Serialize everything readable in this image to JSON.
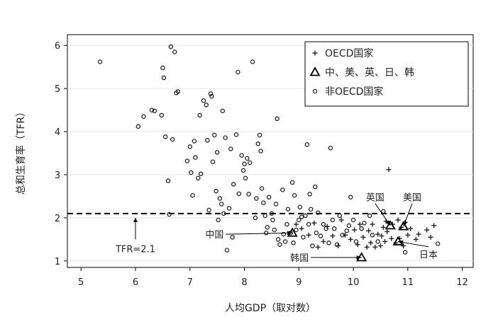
{
  "chart_data": {
    "type": "scatter",
    "xlabel": "人均GDP（取对数）",
    "ylabel": "总和生育率（TFR）",
    "xlim": [
      4.75,
      12.2
    ],
    "ylim": [
      0.85,
      6.25
    ],
    "xticks": [
      "5",
      "6",
      "7",
      "8",
      "9",
      "10",
      "11",
      "12"
    ],
    "yticks": [
      "1",
      "2",
      "3",
      "4",
      "5",
      "6"
    ],
    "grid": "horizontal",
    "legend": {
      "placement": "top-right",
      "entries": [
        {
          "marker": "plus",
          "label": "OECD国家"
        },
        {
          "marker": "triangle",
          "label": "中、美、英、日、韩"
        },
        {
          "marker": "circle",
          "label": "非OECD国家"
        }
      ]
    },
    "reference_line": {
      "y": 2.1,
      "label": "TFR=2.1",
      "style": "dashed"
    },
    "series": [
      {
        "marker": "circle",
        "points": [
          [
            5.35,
            5.62
          ],
          [
            6.05,
            4.12
          ],
          [
            6.15,
            4.35
          ],
          [
            6.3,
            4.5
          ],
          [
            6.35,
            4.48
          ],
          [
            6.48,
            4.38
          ],
          [
            6.5,
            5.48
          ],
          [
            6.52,
            5.25
          ],
          [
            6.55,
            3.88
          ],
          [
            6.6,
            2.86
          ],
          [
            6.62,
            2.08
          ],
          [
            6.65,
            5.97
          ],
          [
            6.68,
            3.82
          ],
          [
            6.72,
            5.85
          ],
          [
            6.75,
            4.9
          ],
          [
            6.78,
            4.93
          ],
          [
            6.95,
            3.32
          ],
          [
            7.0,
            3.65
          ],
          [
            7.02,
            3.05
          ],
          [
            7.05,
            2.52
          ],
          [
            7.08,
            3.78
          ],
          [
            7.1,
            3.4
          ],
          [
            7.15,
            2.92
          ],
          [
            7.18,
            4.38
          ],
          [
            7.2,
            3.02
          ],
          [
            7.25,
            4.72
          ],
          [
            7.3,
            4.62
          ],
          [
            7.32,
            3.8
          ],
          [
            7.35,
            2.18
          ],
          [
            7.38,
            4.88
          ],
          [
            7.4,
            4.82
          ],
          [
            7.42,
            3.3
          ],
          [
            7.45,
            3.92
          ],
          [
            7.48,
            2.62
          ],
          [
            7.5,
            3.52
          ],
          [
            7.52,
            1.95
          ],
          [
            7.55,
            2.45
          ],
          [
            7.58,
            2.32
          ],
          [
            7.6,
            4.48
          ],
          [
            7.62,
            2.1
          ],
          [
            7.65,
            3.86
          ],
          [
            7.68,
            1.25
          ],
          [
            7.72,
            2.22
          ],
          [
            7.75,
            3.6
          ],
          [
            7.78,
            1.55
          ],
          [
            7.8,
            2.78
          ],
          [
            7.85,
            3.93
          ],
          [
            7.88,
            5.38
          ],
          [
            7.9,
            2.56
          ],
          [
            7.95,
            3.45
          ],
          [
            7.98,
            3.1
          ],
          [
            8.0,
            3.25
          ],
          [
            8.02,
            2.92
          ],
          [
            8.05,
            3.38
          ],
          [
            8.08,
            2.55
          ],
          [
            8.1,
            3.28
          ],
          [
            8.15,
            5.62
          ],
          [
            8.2,
            2.0
          ],
          [
            8.22,
            2.45
          ],
          [
            8.25,
            3.72
          ],
          [
            8.28,
            3.92
          ],
          [
            8.3,
            3.55
          ],
          [
            8.32,
            2.68
          ],
          [
            8.35,
            2.35
          ],
          [
            8.38,
            2.05
          ],
          [
            8.4,
            1.65
          ],
          [
            8.42,
            1.78
          ],
          [
            8.45,
            2.48
          ],
          [
            8.5,
            2.1
          ],
          [
            8.52,
            1.95
          ],
          [
            8.55,
            1.72
          ],
          [
            8.58,
            2.32
          ],
          [
            8.6,
            4.3
          ],
          [
            8.62,
            1.5
          ],
          [
            8.65,
            1.38
          ],
          [
            8.7,
            2.65
          ],
          [
            8.72,
            1.62
          ],
          [
            8.75,
            1.45
          ],
          [
            8.78,
            1.85
          ],
          [
            8.8,
            2.2
          ],
          [
            8.85,
            1.65
          ],
          [
            8.88,
            2.82
          ],
          [
            8.9,
            1.42
          ],
          [
            8.92,
            2.52
          ],
          [
            8.95,
            1.72
          ],
          [
            9.0,
            1.95
          ],
          [
            9.02,
            2.25
          ],
          [
            9.05,
            2.02
          ],
          [
            9.08,
            1.55
          ],
          [
            9.12,
            2.05
          ],
          [
            9.15,
            3.7
          ],
          [
            9.18,
            1.85
          ],
          [
            9.2,
            2.55
          ],
          [
            9.22,
            2.2
          ],
          [
            9.25,
            1.35
          ],
          [
            9.3,
            2.72
          ],
          [
            9.32,
            1.65
          ],
          [
            9.35,
            2.12
          ],
          [
            9.4,
            1.58
          ],
          [
            9.45,
            1.85
          ],
          [
            9.5,
            1.75
          ],
          [
            9.55,
            1.42
          ],
          [
            9.58,
            3.62
          ],
          [
            9.62,
            1.95
          ],
          [
            9.65,
            1.75
          ],
          [
            9.7,
            1.38
          ],
          [
            9.75,
            2.05
          ],
          [
            9.8,
            1.6
          ],
          [
            9.88,
            1.7
          ],
          [
            9.92,
            1.82
          ],
          [
            9.95,
            2.48
          ],
          [
            10.0,
            1.95
          ],
          [
            10.05,
            1.45
          ],
          [
            10.15,
            1.75
          ],
          [
            10.2,
            1.88
          ],
          [
            10.3,
            2.05
          ],
          [
            10.35,
            1.6
          ],
          [
            10.45,
            1.45
          ],
          [
            10.55,
            2.15
          ],
          [
            10.95,
            1.2
          ],
          [
            11.55,
            1.4
          ]
        ]
      },
      {
        "marker": "plus",
        "points": [
          [
            8.95,
            1.85
          ],
          [
            9.05,
            1.75
          ],
          [
            9.18,
            1.6
          ],
          [
            9.28,
            1.88
          ],
          [
            9.35,
            1.32
          ],
          [
            9.45,
            1.45
          ],
          [
            9.52,
            1.8
          ],
          [
            9.62,
            1.58
          ],
          [
            9.72,
            1.35
          ],
          [
            9.78,
            1.95
          ],
          [
            9.85,
            1.6
          ],
          [
            9.95,
            1.5
          ],
          [
            10.02,
            1.72
          ],
          [
            10.08,
            1.38
          ],
          [
            10.12,
            1.85
          ],
          [
            10.18,
            1.55
          ],
          [
            10.25,
            1.32
          ],
          [
            10.28,
            1.7
          ],
          [
            10.32,
            1.42
          ],
          [
            10.35,
            1.85
          ],
          [
            10.4,
            1.32
          ],
          [
            10.45,
            1.62
          ],
          [
            10.5,
            1.35
          ],
          [
            10.52,
            1.58
          ],
          [
            10.55,
            1.78
          ],
          [
            10.58,
            1.45
          ],
          [
            10.6,
            1.92
          ],
          [
            10.62,
            1.68
          ],
          [
            10.65,
            3.12
          ],
          [
            10.7,
            1.52
          ],
          [
            10.72,
            1.85
          ],
          [
            10.78,
            1.42
          ],
          [
            10.82,
            1.95
          ],
          [
            10.85,
            1.52
          ],
          [
            10.88,
            1.78
          ],
          [
            10.92,
            1.35
          ],
          [
            10.95,
            1.9
          ],
          [
            11.0,
            1.6
          ],
          [
            11.05,
            1.75
          ],
          [
            11.15,
            1.5
          ],
          [
            11.2,
            1.62
          ],
          [
            11.35,
            1.72
          ],
          [
            11.42,
            1.55
          ],
          [
            11.48,
            1.82
          ]
        ]
      },
      {
        "marker": "triangle",
        "points": [
          [
            8.88,
            1.65
          ],
          [
            10.15,
            1.08
          ],
          [
            10.68,
            1.82
          ],
          [
            10.82,
            1.45
          ],
          [
            10.92,
            1.8
          ]
        ]
      }
    ],
    "annotations": [
      {
        "label": "中国",
        "point": [
          8.88,
          1.65
        ],
        "text_at": [
          7.62,
          1.62
        ],
        "anchor": "end"
      },
      {
        "label": "韩国",
        "point": [
          10.15,
          1.08
        ],
        "text_at": [
          9.18,
          1.08
        ],
        "anchor": "end"
      },
      {
        "label": "英国",
        "point": [
          10.68,
          1.82
        ],
        "text_at": [
          10.4,
          2.48
        ],
        "anchor": "middle"
      },
      {
        "label": "美国",
        "point": [
          10.92,
          1.8
        ],
        "text_at": [
          11.08,
          2.48
        ],
        "anchor": "middle"
      },
      {
        "label": "日本",
        "point": [
          10.82,
          1.45
        ],
        "text_at": [
          11.38,
          1.15
        ],
        "anchor": "middle"
      }
    ]
  }
}
